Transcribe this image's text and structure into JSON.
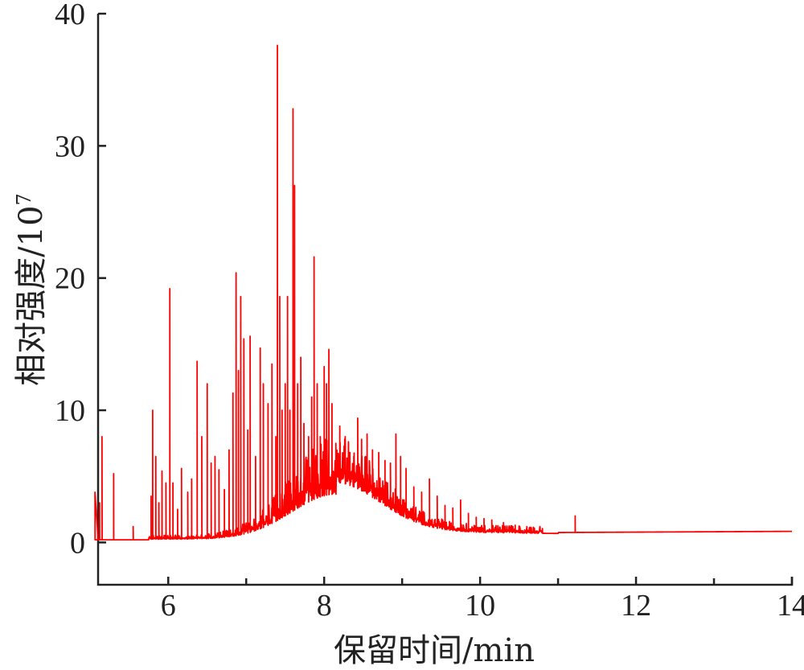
{
  "chart_data": {
    "type": "line",
    "xlabel": "保留时间/min",
    "ylabel_main": "相对强度/10",
    "ylabel_exp": "7",
    "xlim": [
      5.1,
      14.0
    ],
    "ylim": [
      -3.2,
      40
    ],
    "xticks": [
      6,
      8,
      10,
      12,
      14
    ],
    "yticks": [
      0,
      10,
      20,
      30,
      40
    ],
    "xticks_minor": [
      5,
      7,
      9,
      11,
      13
    ],
    "grid": false,
    "series": [
      {
        "color": "#ff0000",
        "peaks": [
          [
            5.06,
            3.8
          ],
          [
            5.12,
            3.0
          ],
          [
            5.15,
            8.0
          ],
          [
            5.3,
            5.2
          ],
          [
            5.55,
            1.2
          ],
          [
            5.78,
            3.5
          ],
          [
            5.8,
            10.0
          ],
          [
            5.84,
            6.5
          ],
          [
            5.88,
            3.0
          ],
          [
            5.92,
            5.4
          ],
          [
            5.97,
            4.5
          ],
          [
            6.02,
            19.2
          ],
          [
            6.06,
            4.5
          ],
          [
            6.12,
            2.5
          ],
          [
            6.17,
            5.6
          ],
          [
            6.25,
            3.8
          ],
          [
            6.3,
            4.8
          ],
          [
            6.37,
            13.7
          ],
          [
            6.43,
            8.0
          ],
          [
            6.5,
            12.0
          ],
          [
            6.55,
            6.0
          ],
          [
            6.6,
            6.5
          ],
          [
            6.65,
            5.5
          ],
          [
            6.72,
            4.0
          ],
          [
            6.78,
            7.0
          ],
          [
            6.83,
            11.3
          ],
          [
            6.87,
            20.4
          ],
          [
            6.9,
            13.0
          ],
          [
            6.93,
            18.6
          ],
          [
            6.97,
            15.4
          ],
          [
            7.02,
            8.5
          ],
          [
            7.05,
            15.6
          ],
          [
            7.12,
            6.5
          ],
          [
            7.18,
            14.7
          ],
          [
            7.22,
            12.0
          ],
          [
            7.28,
            10.5
          ],
          [
            7.33,
            13.5
          ],
          [
            7.38,
            8.0
          ],
          [
            7.4,
            37.6
          ],
          [
            7.43,
            18.6
          ],
          [
            7.46,
            10.0
          ],
          [
            7.5,
            12.0
          ],
          [
            7.53,
            18.6
          ],
          [
            7.56,
            10.0
          ],
          [
            7.6,
            32.8
          ],
          [
            7.62,
            27.0
          ],
          [
            7.66,
            12.0
          ],
          [
            7.7,
            14.0
          ],
          [
            7.74,
            9.0
          ],
          [
            7.8,
            8.0
          ],
          [
            7.84,
            11.0
          ],
          [
            7.87,
            21.6
          ],
          [
            7.91,
            12.0
          ],
          [
            7.95,
            8.0
          ],
          [
            8.0,
            13.3
          ],
          [
            8.03,
            12.0
          ],
          [
            8.06,
            14.6
          ],
          [
            8.1,
            10.5
          ],
          [
            8.15,
            7.5
          ],
          [
            8.2,
            8.8
          ],
          [
            8.27,
            8.0
          ],
          [
            8.33,
            6.8
          ],
          [
            8.38,
            6.5
          ],
          [
            8.43,
            9.4
          ],
          [
            8.48,
            7.8
          ],
          [
            8.55,
            8.2
          ],
          [
            8.62,
            7.0
          ],
          [
            8.7,
            6.8
          ],
          [
            8.78,
            6.2
          ],
          [
            8.85,
            6.0
          ],
          [
            8.92,
            8.2
          ],
          [
            8.98,
            6.5
          ],
          [
            9.05,
            5.6
          ],
          [
            9.15,
            4.2
          ],
          [
            9.25,
            3.8
          ],
          [
            9.35,
            4.8
          ],
          [
            9.45,
            3.5
          ],
          [
            9.55,
            2.8
          ],
          [
            9.65,
            2.6
          ],
          [
            9.75,
            3.2
          ],
          [
            9.85,
            2.2
          ],
          [
            9.95,
            1.9
          ],
          [
            10.05,
            1.8
          ],
          [
            10.15,
            1.7
          ],
          [
            10.3,
            1.5
          ],
          [
            10.45,
            1.3
          ],
          [
            10.6,
            1.2
          ],
          [
            10.8,
            1.05
          ],
          [
            11.22,
            2.0
          ]
        ]
      }
    ]
  }
}
